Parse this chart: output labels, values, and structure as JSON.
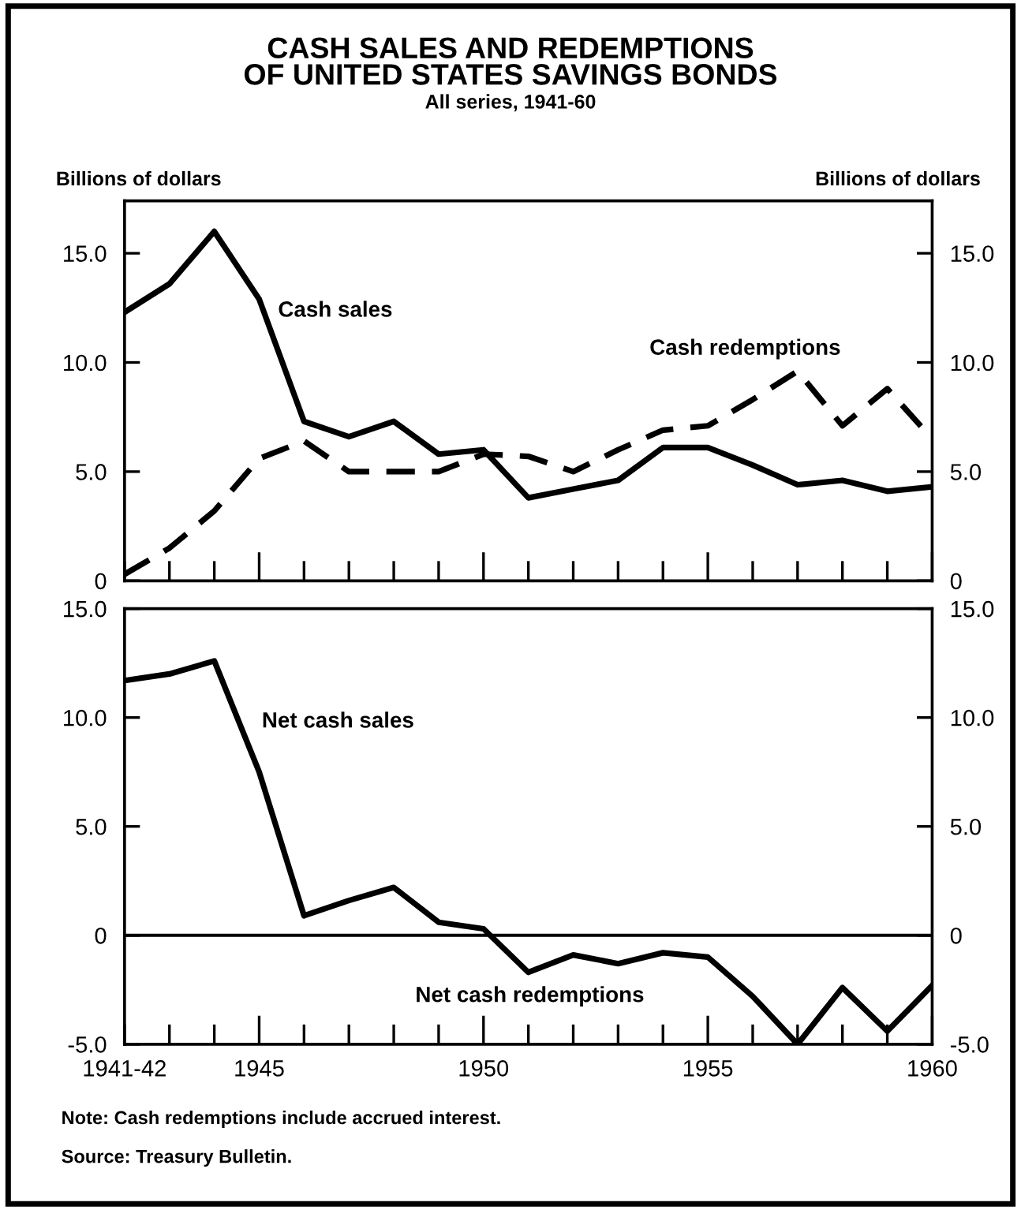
{
  "chart_data": [
    {
      "type": "line",
      "title": "CASH SALES AND REDEMPTIONS\nOF UNITED STATES SAVINGS BONDS",
      "subtitle": "All series, 1941-60",
      "ylabel": "Billions of dollars",
      "y2label": "Billions of dollars",
      "x": [
        1942,
        1943,
        1944,
        1945,
        1946,
        1947,
        1948,
        1949,
        1950,
        1951,
        1952,
        1953,
        1954,
        1955,
        1956,
        1957,
        1958,
        1959,
        1960
      ],
      "series": [
        {
          "name": "Cash sales",
          "color": "#000000",
          "line_style": "solid",
          "values": [
            12.3,
            13.6,
            16.0,
            12.9,
            7.3,
            6.6,
            7.3,
            5.8,
            6.0,
            3.8,
            4.2,
            4.6,
            6.1,
            6.1,
            5.3,
            4.4,
            4.6,
            4.1,
            4.3
          ]
        },
        {
          "name": "Cash redemptions",
          "color": "#000000",
          "line_style": "dashed",
          "values": [
            0.3,
            1.5,
            3.2,
            5.6,
            6.4,
            5.0,
            5.0,
            5.0,
            5.8,
            5.7,
            5.0,
            6.0,
            6.9,
            7.1,
            8.3,
            9.6,
            7.1,
            8.8,
            6.5
          ]
        }
      ],
      "xlim": [
        1942,
        1960
      ],
      "xticks": [
        {
          "value": 1942,
          "label": null
        },
        {
          "value": 1943,
          "label": null
        },
        {
          "value": 1944,
          "label": null
        },
        {
          "value": 1945,
          "label": null
        },
        {
          "value": 1946,
          "label": null
        },
        {
          "value": 1947,
          "label": null
        },
        {
          "value": 1948,
          "label": null
        },
        {
          "value": 1949,
          "label": null
        },
        {
          "value": 1950,
          "label": null
        },
        {
          "value": 1951,
          "label": null
        },
        {
          "value": 1952,
          "label": null
        },
        {
          "value": 1953,
          "label": null
        },
        {
          "value": 1954,
          "label": null
        },
        {
          "value": 1955,
          "label": null
        },
        {
          "value": 1956,
          "label": null
        },
        {
          "value": 1957,
          "label": null
        },
        {
          "value": 1958,
          "label": null
        },
        {
          "value": 1959,
          "label": null
        },
        {
          "value": 1960,
          "label": null
        }
      ],
      "ylim": [
        0,
        17.4
      ],
      "yticks": [
        {
          "value": 0,
          "label": "0"
        },
        {
          "value": 5,
          "label": "5.0"
        },
        {
          "value": 10,
          "label": "10.0"
        },
        {
          "value": 15,
          "label": "15.0"
        }
      ],
      "y2lim": [
        0,
        17.4
      ],
      "y2ticks": [
        {
          "value": 0,
          "label": "0"
        },
        {
          "value": 5,
          "label": "5.0"
        },
        {
          "value": 10,
          "label": "10.0"
        },
        {
          "value": 15,
          "label": "15.0"
        }
      ],
      "tick_labels": "y",
      "grid": false,
      "legend": false,
      "marker": "none"
    },
    {
      "type": "line",
      "x": [
        1942,
        1943,
        1944,
        1945,
        1946,
        1947,
        1948,
        1949,
        1950,
        1951,
        1952,
        1953,
        1954,
        1955,
        1956,
        1957,
        1958,
        1959,
        1960
      ],
      "series": [
        {
          "color": "#000000",
          "line_style": "solid",
          "values": [
            11.7,
            12.0,
            12.6,
            7.5,
            0.9,
            1.6,
            2.2,
            0.6,
            0.3,
            -1.7,
            -0.9,
            -1.3,
            -0.8,
            -1.0,
            -2.8,
            -5.0,
            -2.4,
            -4.4,
            -2.3
          ]
        }
      ],
      "xlim": [
        1942,
        1960
      ],
      "xticks": [
        {
          "value": 1942,
          "label": "1941-42"
        },
        {
          "value": 1943,
          "label": null
        },
        {
          "value": 1944,
          "label": null
        },
        1945,
        {
          "value": 1946,
          "label": null
        },
        {
          "value": 1947,
          "label": null
        },
        {
          "value": 1948,
          "label": null
        },
        {
          "value": 1949,
          "label": null
        },
        1950,
        {
          "value": 1951,
          "label": null
        },
        {
          "value": 1952,
          "label": null
        },
        {
          "value": 1953,
          "label": null
        },
        {
          "value": 1954,
          "label": null
        },
        1955,
        {
          "value": 1956,
          "label": null
        },
        {
          "value": 1957,
          "label": null
        },
        {
          "value": 1958,
          "label": null
        },
        {
          "value": 1959,
          "label": null
        },
        1960
      ],
      "ylim": [
        -5,
        15
      ],
      "yticks": [
        {
          "value": -5,
          "label": "-5.0"
        },
        {
          "value": 0,
          "label": "0"
        },
        {
          "value": 5,
          "label": "5.0"
        },
        {
          "value": 10,
          "label": "10.0"
        },
        {
          "value": 15,
          "label": "15.0"
        }
      ],
      "y2lim": [
        -5,
        15
      ],
      "y2ticks": [
        {
          "value": -5,
          "label": "-5.0"
        },
        {
          "value": 0,
          "label": "0"
        },
        {
          "value": 5,
          "label": "5.0"
        },
        {
          "value": 10,
          "label": "10.0"
        },
        {
          "value": 15,
          "label": "15.0"
        }
      ],
      "ref_lines": [
        {
          "axis": "y",
          "value": 0,
          "color": "#000000",
          "line_style": "solid"
        }
      ],
      "annotations": [
        "Net cash sales",
        "Net cash redemptions",
        "Note: Cash redemptions include accrued interest.",
        "Source: Treasury Bulletin."
      ],
      "grid": false,
      "legend": false,
      "marker": "none"
    }
  ]
}
